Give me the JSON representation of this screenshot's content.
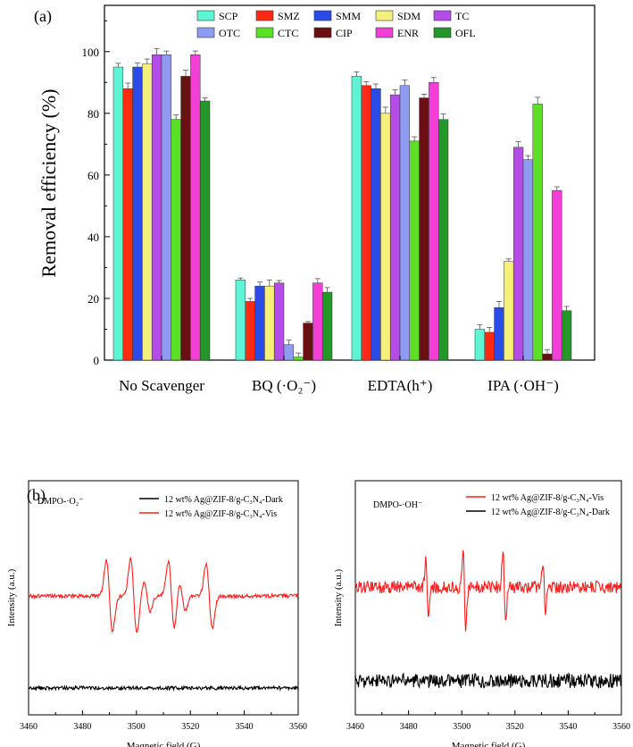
{
  "chart_data": [
    {
      "panel": "(a)",
      "type": "bar",
      "title": "",
      "xlabel": "",
      "ylabel": "Removal efficiency (%)",
      "ylim": [
        0,
        115
      ],
      "yticks": [
        0,
        20,
        40,
        60,
        80,
        100
      ],
      "categories": [
        "No Scavenger",
        "BQ (·O₂⁻)",
        "EDTA(h⁺)",
        "IPA (·OH⁻)"
      ],
      "legend_position": "top-right",
      "series": [
        {
          "name": "SCP",
          "color": "#5ef5d4",
          "values": [
            95,
            26,
            92,
            10
          ],
          "errors": [
            1.2,
            0.6,
            1.4,
            1.5
          ]
        },
        {
          "name": "SMZ",
          "color": "#ff2a12",
          "values": [
            88,
            19,
            89,
            9
          ],
          "errors": [
            1.8,
            1,
            1.2,
            1.6
          ]
        },
        {
          "name": "SMM",
          "color": "#2a4be6",
          "values": [
            95,
            24,
            88,
            17
          ],
          "errors": [
            1.4,
            1.3,
            1.5,
            2
          ]
        },
        {
          "name": "SDM",
          "color": "#f5f07c",
          "values": [
            96,
            24,
            80,
            32
          ],
          "errors": [
            1.6,
            2,
            2,
            0.8
          ]
        },
        {
          "name": "TC",
          "color": "#b54ce6",
          "values": [
            99,
            25,
            86,
            69
          ],
          "errors": [
            2,
            0.8,
            1.6,
            1.8
          ]
        },
        {
          "name": "OTC",
          "color": "#8f9bf0",
          "values": [
            99,
            5,
            89,
            65
          ],
          "errors": [
            1.2,
            1.5,
            1.8,
            1.3
          ]
        },
        {
          "name": "CTC",
          "color": "#5ce026",
          "values": [
            78,
            1,
            71,
            83
          ],
          "errors": [
            1.5,
            1.3,
            1.4,
            2.2
          ]
        },
        {
          "name": "CIP",
          "color": "#6a0f12",
          "values": [
            92,
            12,
            85,
            2
          ],
          "errors": [
            2,
            0.5,
            1.2,
            1.4
          ]
        },
        {
          "name": "ENR",
          "color": "#f23fd6",
          "values": [
            99,
            25,
            90,
            55
          ],
          "errors": [
            1.2,
            1.4,
            1.6,
            1.2
          ]
        },
        {
          "name": "OFL",
          "color": "#25962a",
          "values": [
            84,
            22,
            78,
            16
          ],
          "errors": [
            1,
            1.5,
            1.8,
            1.4
          ]
        }
      ]
    },
    {
      "panel": "(b)",
      "type": "line",
      "annotation": "DMPO-·O₂⁻",
      "xlabel": "Magnetic field (G)",
      "ylabel": "Intensity (a.u.)",
      "xlim": [
        3460,
        3560
      ],
      "xticks": [
        "3460",
        "3480",
        "3500",
        "3520",
        "3540",
        "3560"
      ],
      "legend_position": "top-right",
      "series": [
        {
          "name": "12 wt% Ag@ZIF-8/g-C₃N₄-Dark",
          "color": "#000000",
          "peaks": []
        },
        {
          "name": "12 wt% Ag@ZIF-8/g-C₃N₄-Vis",
          "color": "#ff1f1f",
          "peaks": [
            3490,
            3499,
            3504,
            3513,
            3517,
            3527
          ]
        }
      ]
    },
    {
      "panel": "",
      "type": "line",
      "annotation": "DMPO-·OH⁻",
      "xlabel": "Magnetic field (G)",
      "ylabel": "Intensity (a.u.)",
      "xlim": [
        3460,
        3560
      ],
      "xticks": [
        "3460",
        "3480",
        "3500",
        "3520",
        "3540",
        "3560"
      ],
      "legend_position": "top-right",
      "series": [
        {
          "name": "12 wt% Ag@ZIF-8/g-C₃N₄-Vis",
          "color": "#ff1f1f",
          "peaks": [
            3487,
            3501,
            3516,
            3531
          ]
        },
        {
          "name": "12 wt% Ag@ZIF-8/g-C₃N₄-Dark",
          "color": "#000000",
          "peaks": []
        }
      ]
    }
  ]
}
